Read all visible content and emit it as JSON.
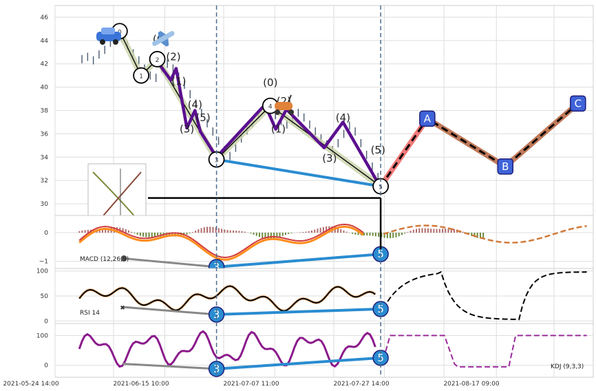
{
  "chart_data": [
    {
      "panel": "price",
      "type": "line",
      "ylim": [
        29,
        47
      ],
      "yticks": [
        30,
        32,
        34,
        36,
        38,
        40,
        42,
        44,
        46
      ],
      "xticks": [
        "2021-05-24 14:00",
        "2021-06-15 10:00",
        "2021-07-07 11:00",
        "2021-07-27 14:00",
        "2021-08-17 09:00"
      ],
      "close_series": [
        42.4,
        42.6,
        42.3,
        42.8,
        43.2,
        43.8,
        44.5,
        44.2,
        43.6,
        42.9,
        42.3,
        41.6,
        41.0,
        40.8,
        41.6,
        42.0,
        41.6,
        40.9,
        40.2,
        39.4,
        38.6,
        37.8,
        36.9,
        36.2,
        35.4,
        34.6,
        34.1,
        34.8,
        35.6,
        36.3,
        36.9,
        37.6,
        38.3,
        38.2,
        37.6,
        37.1,
        36.8,
        37.2,
        37.8,
        37.4,
        36.8,
        36.2,
        35.6,
        35.1,
        34.6,
        35.2,
        36.0,
        36.7,
        36.2,
        35.2,
        34.2,
        33.2,
        32.3
      ],
      "waves": [
        {
          "label": "0",
          "x": 0.12,
          "y": 44.8
        },
        {
          "label": "1",
          "x": 0.16,
          "y": 41.0
        },
        {
          "label": "2",
          "x": 0.19,
          "y": 42.4
        },
        {
          "label": "3",
          "x": 0.3,
          "y": 33.8
        },
        {
          "label": "4",
          "x": 0.4,
          "y": 38.4
        },
        {
          "label": "5",
          "x": 0.605,
          "y": 31.5
        }
      ],
      "sub_waves": [
        {
          "label": "(0)",
          "x": 0.195,
          "y": 43.8
        },
        {
          "label": "(2)",
          "x": 0.22,
          "y": 42.3
        },
        {
          "label": "(1)",
          "x": 0.23,
          "y": 40.2
        },
        {
          "label": "(4)",
          "x": 0.26,
          "y": 38.2
        },
        {
          "label": "(3)",
          "x": 0.245,
          "y": 36.1
        },
        {
          "label": "(5)",
          "x": 0.275,
          "y": 37.1
        },
        {
          "label": "(0)",
          "x": 0.4,
          "y": 40.1
        },
        {
          "label": "(2)",
          "x": 0.425,
          "y": 38.5
        },
        {
          "label": "(1)",
          "x": 0.415,
          "y": 36.1
        },
        {
          "label": "(4)",
          "x": 0.535,
          "y": 37.1
        },
        {
          "label": "(3)",
          "x": 0.51,
          "y": 33.6
        },
        {
          "label": "(5)",
          "x": 0.6,
          "y": 34.3
        }
      ],
      "purple_path": [
        [
          0.19,
          42.2
        ],
        [
          0.215,
          40.6
        ],
        [
          0.225,
          41.6
        ],
        [
          0.245,
          36.5
        ],
        [
          0.26,
          38.0
        ],
        [
          0.27,
          36.2
        ],
        [
          0.3,
          34.0
        ],
        [
          0.39,
          38.5
        ],
        [
          0.41,
          36.4
        ],
        [
          0.43,
          38.1
        ],
        [
          0.5,
          34.8
        ],
        [
          0.535,
          37.0
        ],
        [
          0.6,
          31.8
        ]
      ],
      "projection": [
        {
          "label": "A",
          "x": 0.73,
          "y": 37.3
        },
        {
          "label": "B",
          "x": 0.875,
          "y": 33.2
        },
        {
          "label": "C",
          "x": 1.01,
          "y": 38.6
        }
      ],
      "horizontal_line_y": 30.5
    },
    {
      "panel": "macd",
      "label": "MACD (12,26,9)",
      "yticks": [
        -1,
        0
      ],
      "ylim": [
        -1.25,
        0.6
      ],
      "divergence": [
        {
          "label": "3",
          "x": 0.3,
          "y": -1.2
        },
        {
          "label": "5",
          "x": 0.605,
          "y": -0.75
        }
      ]
    },
    {
      "panel": "rsi",
      "label": "RSI 14",
      "yticks": [
        0,
        50,
        100
      ],
      "ylim": [
        -5,
        105
      ],
      "divergence": [
        {
          "label": "3",
          "x": 0.3,
          "y": 13
        },
        {
          "label": "5",
          "x": 0.605,
          "y": 24
        }
      ]
    },
    {
      "panel": "kdj",
      "label": "KDJ (9,3,3)",
      "yticks": [
        0,
        100
      ],
      "ylim": [
        -40,
        140
      ],
      "divergence": [
        {
          "label": "3",
          "x": 0.3,
          "y": -12
        },
        {
          "label": "5",
          "x": 0.605,
          "y": 25
        }
      ]
    }
  ]
}
